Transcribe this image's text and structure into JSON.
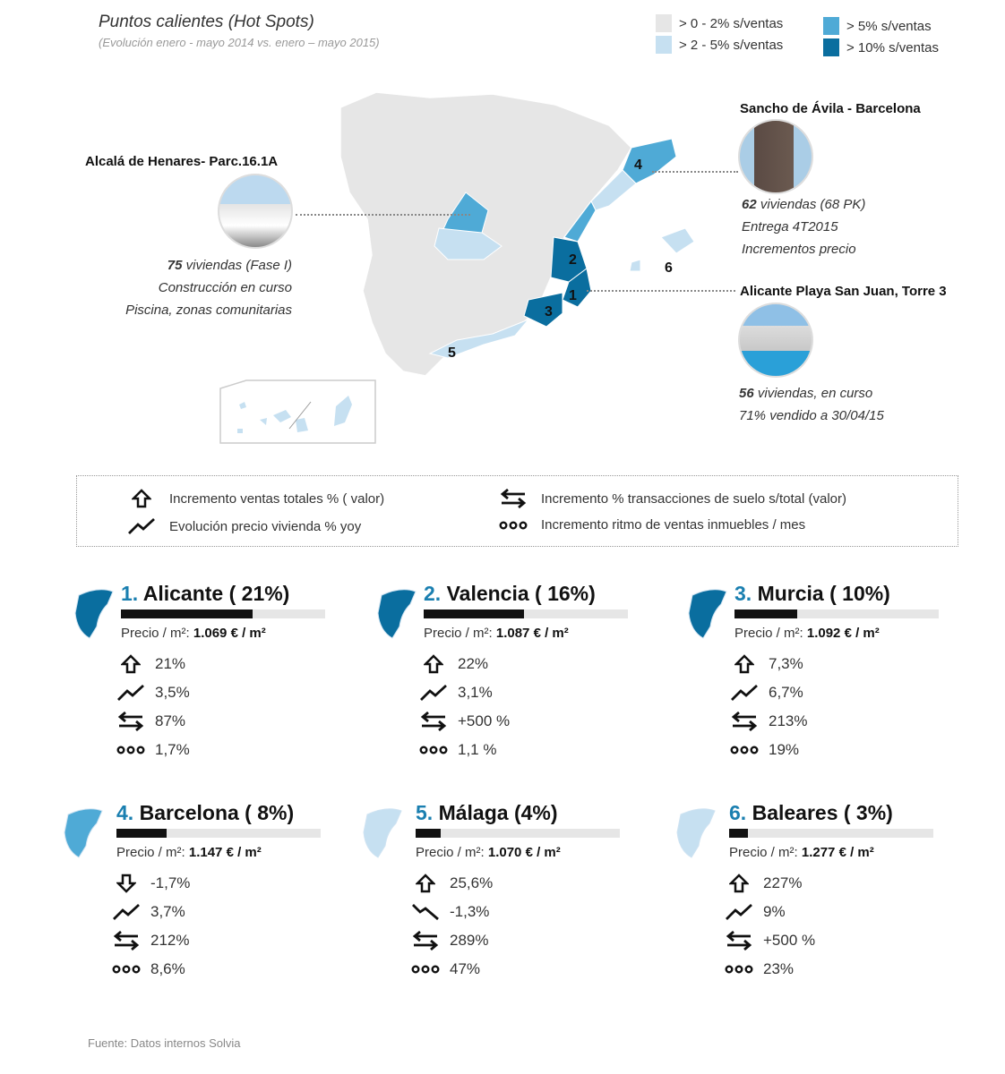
{
  "header": {
    "title": "Puntos calientes (Hot Spots)",
    "subtitle": "(Evolución enero - mayo 2014 vs. enero – mayo 2015)"
  },
  "legend": [
    {
      "label": "> 0 - 2% s/ventas",
      "color": "#e6e6e6"
    },
    {
      "label": "> 2 - 5% s/ventas",
      "color": "#c6e0f1"
    },
    {
      "label": "> 5% s/ventas",
      "color": "#4faad6"
    },
    {
      "label": "> 10% s/ventas",
      "color": "#0a6e9f"
    }
  ],
  "map": {
    "markers": [
      "1",
      "2",
      "3",
      "4",
      "5",
      "6"
    ]
  },
  "callouts": {
    "alcala": {
      "title": "Alcalá de Henares- Parc.16.1A",
      "lines": [
        "75 viviendas (Fase I)",
        "Construcción en curso",
        "Piscina, zonas comunitarias"
      ],
      "bold": "75",
      "rest": " viviendas (Fase I)"
    },
    "sancho": {
      "title": "Sancho de Ávila - Barcelona",
      "bold": "62",
      "rest": " viviendas (68 PK)",
      "l2": "Entrega 4T2015",
      "l3": "Incrementos precio"
    },
    "alicante": {
      "title": "Alicante Playa San Juan, Torre 3",
      "bold": "56",
      "rest": " viviendas, en curso",
      "l2": "71% vendido a 30/04/15"
    }
  },
  "key": [
    {
      "icon": "house-up-icon",
      "label": "Incremento ventas totales % ( valor)"
    },
    {
      "icon": "trend-icon",
      "label": "Evolución precio vivienda % yoy"
    },
    {
      "icon": "exchange-icon",
      "label": "Incremento % transacciones de suelo s/total (valor)"
    },
    {
      "icon": "dots-icon",
      "label": "Incremento ritmo de ventas inmuebles / mes"
    }
  ],
  "cards": [
    {
      "num": "1.",
      "name": "Alicante ( 21%)",
      "share": 21,
      "price_label": "Precio / m²:",
      "price": "1.069 € / m²",
      "sales": "21%",
      "sales_dir": "up",
      "trend": "3,5%",
      "trend_dir": "up",
      "land": "87%",
      "rhythm": "1,7%",
      "color": "#0a6e9f"
    },
    {
      "num": "2.",
      "name": "Valencia ( 16%)",
      "share": 16,
      "price_label": "Precio / m²:",
      "price": "1.087 € / m²",
      "sales": "22%",
      "sales_dir": "up",
      "trend": "3,1%",
      "trend_dir": "up",
      "land": "+500 %",
      "rhythm": "1,1 %",
      "color": "#0a6e9f"
    },
    {
      "num": "3.",
      "name": "Murcia ( 10%)",
      "share": 10,
      "price_label": "Precio / m²:",
      "price": "1.092 € / m²",
      "sales": "7,3%",
      "sales_dir": "up",
      "trend": "6,7%",
      "trend_dir": "up",
      "land": "213%",
      "rhythm": "19%",
      "color": "#0a6e9f"
    },
    {
      "num": "4.",
      "name": "Barcelona ( 8%)",
      "share": 8,
      "price_label": "Precio / m²:",
      "price": "1.147 € / m²",
      "sales": "-1,7%",
      "sales_dir": "down",
      "trend": "3,7%",
      "trend_dir": "up",
      "land": "212%",
      "rhythm": "8,6%",
      "color": "#4faad6"
    },
    {
      "num": "5.",
      "name": "Málaga (4%)",
      "share": 4,
      "price_label": "Precio / m²:",
      "price": "1.070 € / m²",
      "sales": "25,6%",
      "sales_dir": "up",
      "trend": "-1,3%",
      "trend_dir": "down",
      "land": "289%",
      "rhythm": "47%",
      "color": "#c6e0f1"
    },
    {
      "num": "6.",
      "name": "Baleares ( 3%)",
      "share": 3,
      "price_label": "Precio / m²:",
      "price": "1.277 € / m²",
      "sales": "227%",
      "sales_dir": "up",
      "trend": "9%",
      "trend_dir": "up",
      "land": "+500 %",
      "rhythm": "23%",
      "color": "#c6e0f1"
    }
  ],
  "footer": "Fuente: Datos internos Solvia"
}
